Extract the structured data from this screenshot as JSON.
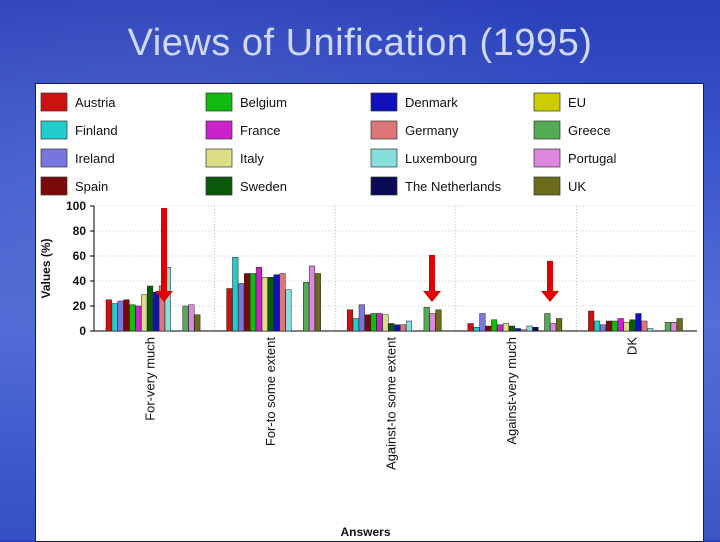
{
  "slide": {
    "title": "Views of Unification (1995)"
  },
  "chart_data": {
    "type": "bar",
    "ylabel": "Values (%)",
    "xlabel": "Answers",
    "ylim": [
      0,
      100
    ],
    "yticks": [
      0,
      20,
      40,
      60,
      80,
      100
    ],
    "grid": "horizontal dotted",
    "legend_position": "top",
    "categories": [
      "For-very much",
      "For-to some extent",
      "Against-to some extent",
      "Against-very much",
      "DK"
    ],
    "series": [
      {
        "name": "Austria",
        "color": "#cc1111",
        "values": [
          25,
          34,
          17,
          6,
          16
        ]
      },
      {
        "name": "Finland",
        "color": "#22cccc",
        "values": [
          22,
          59,
          10,
          3,
          8
        ]
      },
      {
        "name": "Ireland",
        "color": "#7777dd",
        "values": [
          24,
          38,
          21,
          14,
          5
        ]
      },
      {
        "name": "Spain",
        "color": "#7a0a0a",
        "values": [
          25,
          46,
          13,
          4,
          8
        ]
      },
      {
        "name": "Belgium",
        "color": "#11bb11",
        "values": [
          21,
          46,
          14,
          9,
          8
        ]
      },
      {
        "name": "France",
        "color": "#cc22cc",
        "values": [
          20,
          51,
          14,
          5,
          10
        ]
      },
      {
        "name": "Italy",
        "color": "#dddd88",
        "values": [
          29,
          43,
          13,
          6,
          7
        ]
      },
      {
        "name": "Sweden",
        "color": "#0a5a0a",
        "values": [
          36,
          43,
          6,
          4,
          9
        ]
      },
      {
        "name": "Denmark",
        "color": "#1111bb",
        "values": [
          31,
          45,
          5,
          2,
          14
        ]
      },
      {
        "name": "Germany",
        "color": "#dd7777",
        "values": [
          36,
          46,
          5,
          1,
          8
        ]
      },
      {
        "name": "Luxembourg",
        "color": "#88dddd",
        "values": [
          51,
          33,
          8,
          4,
          2
        ]
      },
      {
        "name": "The Netherlands",
        "color": "#0a0a55",
        "values": [
          0,
          0,
          0,
          3,
          0
        ]
      },
      {
        "name": "EU",
        "color": "#cccc00",
        "values": [
          0,
          0,
          0,
          0,
          0
        ]
      },
      {
        "name": "Greece",
        "color": "#55aa55",
        "values": [
          20,
          39,
          19,
          14,
          7
        ]
      },
      {
        "name": "Portugal",
        "color": "#dd88dd",
        "values": [
          21,
          52,
          14,
          6,
          7
        ]
      },
      {
        "name": "UK",
        "color": "#6b6b1a",
        "values": [
          13,
          46,
          17,
          10,
          10
        ]
      }
    ],
    "annotations": [
      {
        "type": "arrow",
        "color": "#e00000",
        "category": "For-very much"
      },
      {
        "type": "arrow",
        "color": "#e00000",
        "category": "Against-to some extent"
      },
      {
        "type": "arrow",
        "color": "#e00000",
        "category": "Against-very much"
      }
    ]
  }
}
